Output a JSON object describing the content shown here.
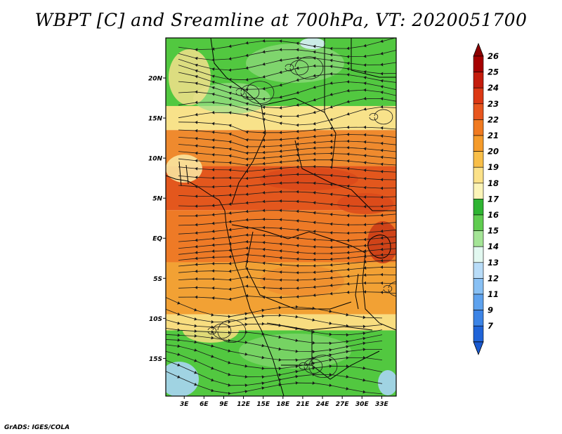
{
  "title": "WBPT [C] and Sreamline at 700hPa, VT: 2020051700",
  "credit": "GrADS: IGES/COLA",
  "map": {
    "lat_labels": [
      {
        "lat": 20,
        "label": "20N"
      },
      {
        "lat": 15,
        "label": "15N"
      },
      {
        "lat": 10,
        "label": "10N"
      },
      {
        "lat": 5,
        "label": "5N"
      },
      {
        "lat": 0,
        "label": "EQ"
      },
      {
        "lat": -5,
        "label": "5S"
      },
      {
        "lat": -10,
        "label": "10S"
      },
      {
        "lat": -15,
        "label": "15S"
      }
    ],
    "lon_labels": [
      {
        "lon": 3,
        "label": "3E"
      },
      {
        "lon": 6,
        "label": "6E"
      },
      {
        "lon": 9,
        "label": "9E"
      },
      {
        "lon": 12,
        "label": "12E"
      },
      {
        "lon": 15,
        "label": "15E"
      },
      {
        "lon": 18,
        "label": "18E"
      },
      {
        "lon": 21,
        "label": "21E"
      },
      {
        "lon": 24,
        "label": "24E"
      },
      {
        "lon": 27,
        "label": "27E"
      },
      {
        "lon": 30,
        "label": "30E"
      },
      {
        "lon": 33,
        "label": "33E"
      }
    ],
    "lon_range": [
      0.2,
      35.2
    ],
    "lat_range": [
      -19.7,
      25.0
    ],
    "field_regions": [
      {
        "name": "northern-green",
        "color": "#52c840",
        "lat_top": 25.0,
        "lat_bottom": 16.5
      },
      {
        "name": "sahel-yellow",
        "color": "#f8e28a",
        "lat_top": 16.5,
        "lat_bottom": 13.5
      },
      {
        "name": "northern-orange",
        "color": "#ef8a2e",
        "lat_top": 13.5,
        "lat_bottom": 9.0
      },
      {
        "name": "central-red",
        "color": "#e3571d",
        "lat_top": 9.0,
        "lat_bottom": 3.5
      },
      {
        "name": "equatorial-orange",
        "color": "#ee7a26",
        "lat_top": 3.5,
        "lat_bottom": -3.0
      },
      {
        "name": "southern-orange",
        "color": "#f2a134",
        "lat_top": -3.0,
        "lat_bottom": -9.5
      },
      {
        "name": "southern-yellow",
        "color": "#f8dd80",
        "lat_top": -9.5,
        "lat_bottom": -11.5
      },
      {
        "name": "southern-green",
        "color": "#52c840",
        "lat_top": -11.5,
        "lat_bottom": -19.7
      }
    ]
  },
  "colorbar": {
    "entries": [
      {
        "label": "26",
        "color": "#a50000"
      },
      {
        "label": "25",
        "color": "#c41c0c"
      },
      {
        "label": "24",
        "color": "#dc3814"
      },
      {
        "label": "23",
        "color": "#e8561e"
      },
      {
        "label": "22",
        "color": "#f07a20"
      },
      {
        "label": "21",
        "color": "#f59b2a"
      },
      {
        "label": "20",
        "color": "#f8be48"
      },
      {
        "label": "19",
        "color": "#fbe188"
      },
      {
        "label": "18",
        "color": "#fbf4b8"
      },
      {
        "label": "17",
        "color": "#2eb432"
      },
      {
        "label": "16",
        "color": "#60cc50"
      },
      {
        "label": "15",
        "color": "#a4e496"
      },
      {
        "label": "14",
        "color": "#e2f8f0"
      },
      {
        "label": "13",
        "color": "#b8dcf8"
      },
      {
        "label": "12",
        "color": "#88c0f4"
      },
      {
        "label": "11",
        "color": "#5ea2ee"
      },
      {
        "label": "9",
        "color": "#3c84e6"
      },
      {
        "label": "7",
        "color": "#2064d8"
      }
    ],
    "top_color": "#8c0000",
    "bottom_color": "#1a5ad0"
  },
  "colors": {
    "frame": "#000000",
    "streamline": "#1a1a1a",
    "boundary": "#000000"
  }
}
